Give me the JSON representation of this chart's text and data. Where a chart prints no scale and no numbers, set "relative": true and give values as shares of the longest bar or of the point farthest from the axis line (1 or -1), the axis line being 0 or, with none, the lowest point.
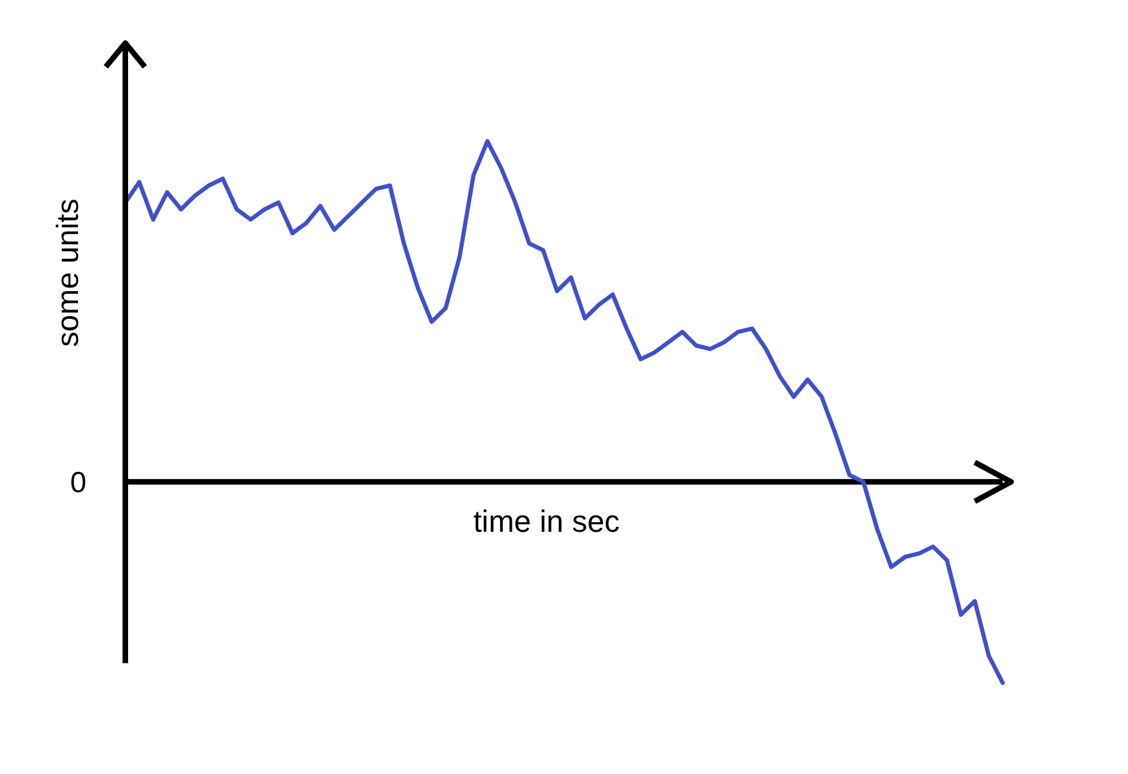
{
  "chart_data": {
    "type": "line",
    "relative": true,
    "xlabel": "time in sec",
    "ylabel": "some units",
    "categories": [
      null,
      null,
      null,
      null,
      null,
      null,
      null,
      null,
      null,
      null,
      null,
      null,
      null,
      null,
      null,
      null,
      null,
      null,
      null,
      null,
      null,
      null,
      null,
      null,
      null,
      null,
      null,
      null,
      null,
      null,
      null,
      null,
      null,
      null,
      null,
      null,
      null,
      null,
      null,
      null,
      null,
      null,
      null,
      null,
      null,
      null,
      null,
      null,
      null,
      null,
      null,
      null,
      null,
      null,
      null,
      null,
      null,
      null,
      null,
      null,
      null,
      null,
      null,
      null
    ],
    "series": [
      {
        "color": "#4050c8",
        "values": [
          0.82,
          0.88,
          0.77,
          0.85,
          0.8,
          0.84,
          0.87,
          0.89,
          0.8,
          0.77,
          0.8,
          0.82,
          0.73,
          0.76,
          0.81,
          0.74,
          0.78,
          0.82,
          0.86,
          0.87,
          0.7,
          0.57,
          0.47,
          0.51,
          0.66,
          0.9,
          1,
          0.92,
          0.82,
          0.7,
          0.68,
          0.56,
          0.6,
          0.48,
          0.52,
          0.55,
          0.45,
          0.36,
          0.38,
          0.41,
          0.44,
          0.4,
          0.39,
          0.41,
          0.44,
          0.45,
          0.39,
          0.31,
          0.25,
          0.3,
          0.25,
          0.14,
          0.02,
          0,
          -0.14,
          -0.25,
          -0.22,
          -0.21,
          -0.19,
          -0.23,
          -0.39,
          -0.35,
          -0.51,
          -0.59
        ]
      }
    ],
    "ref_lines": [
      {
        "axis": "y",
        "value": 0,
        "label": "0",
        "color": "#000000"
      }
    ],
    "marker": "none",
    "line_style": "solid",
    "grid": false,
    "legend": false
  }
}
